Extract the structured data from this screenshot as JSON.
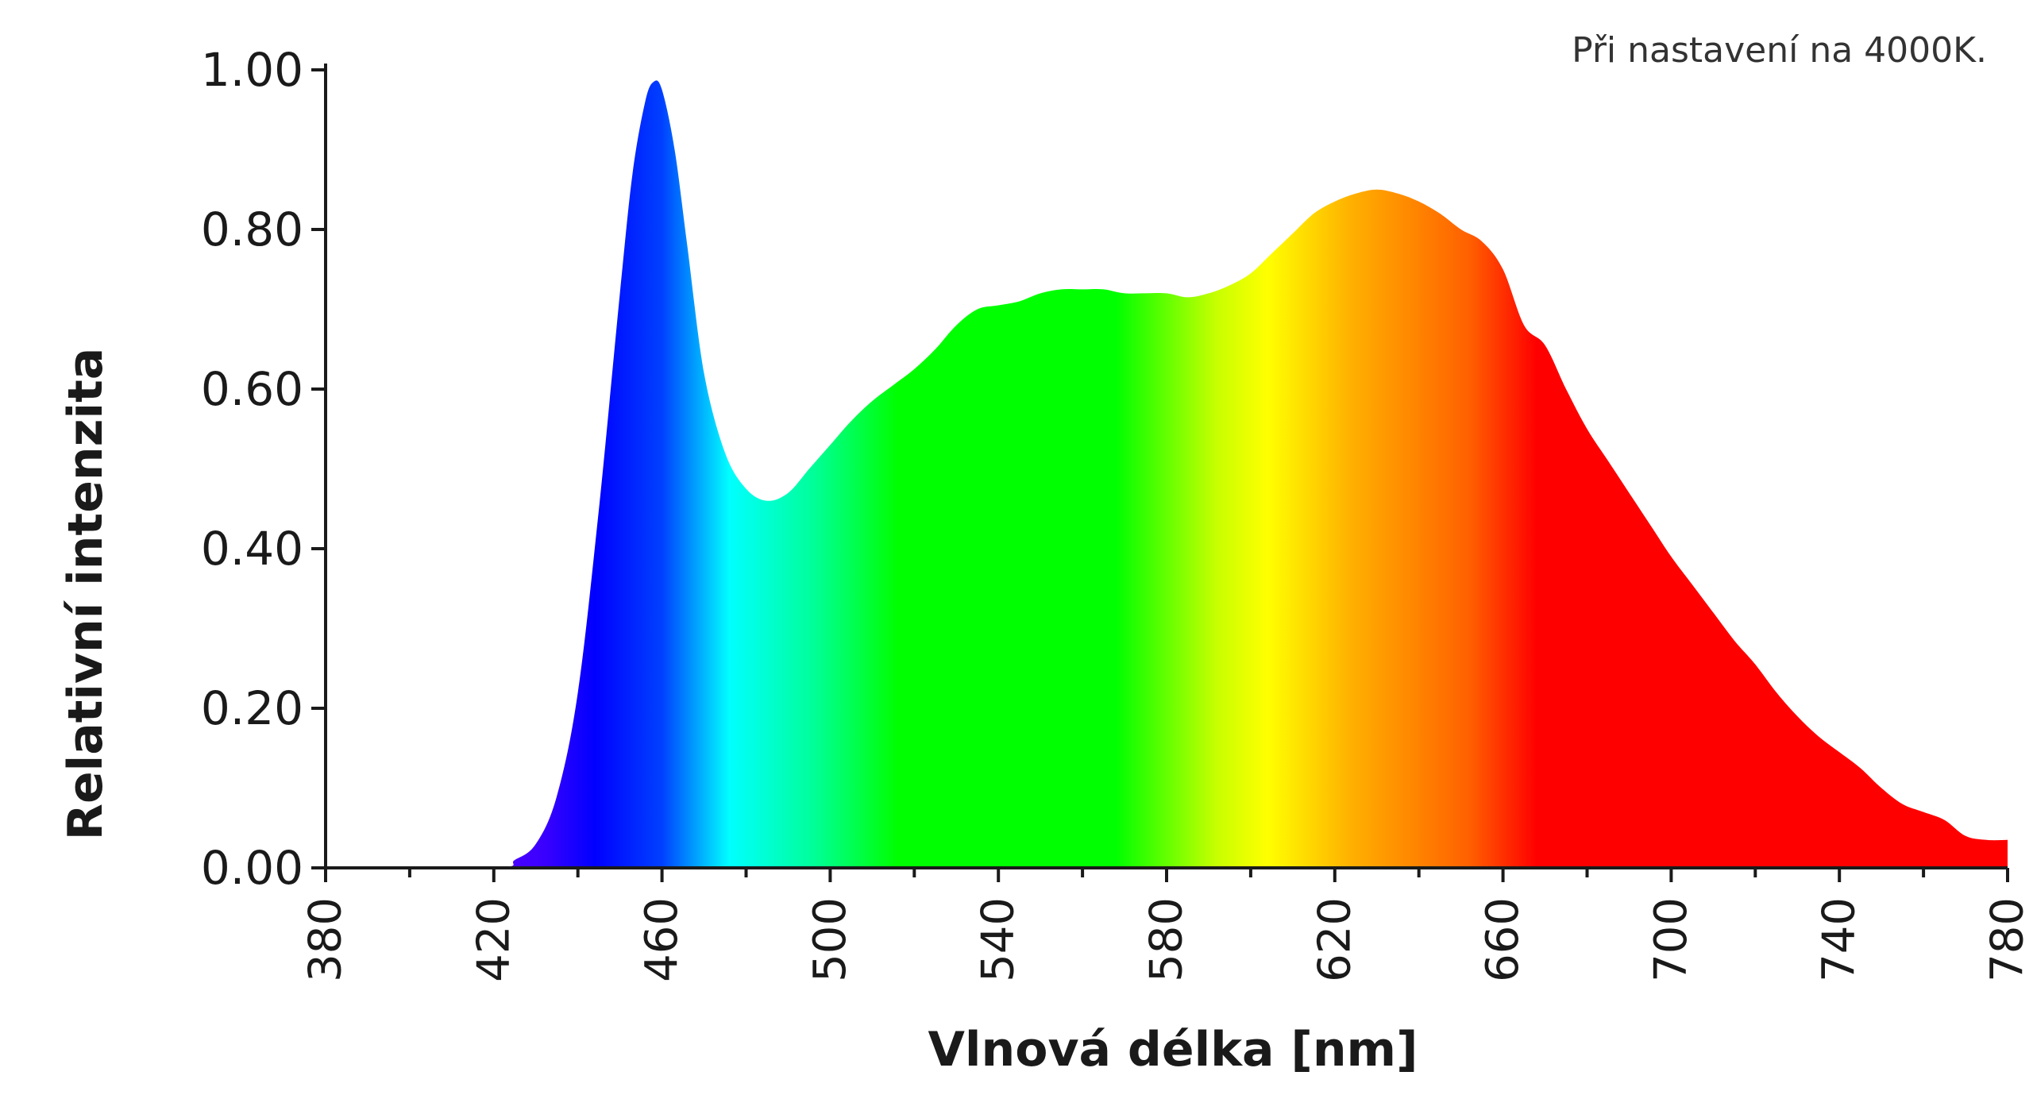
{
  "chart_data": {
    "type": "area",
    "title": "",
    "annotation": "Při nastavení na 4000K.",
    "xlabel": "Vlnová délka [nm]",
    "ylabel": "Relativní intenzita",
    "xlim": [
      380,
      780
    ],
    "ylim": [
      0,
      1
    ],
    "x_major_ticks": [
      380,
      420,
      460,
      500,
      540,
      580,
      620,
      660,
      700,
      740,
      780
    ],
    "x_tick_labels": [
      "380",
      "420",
      "460",
      "500",
      "540",
      "580",
      "620",
      "660",
      "700",
      "740",
      "780"
    ],
    "y_ticks": [
      0,
      0.2,
      0.4,
      0.6,
      0.8,
      1.0
    ],
    "y_tick_labels": [
      "0.00",
      "0.20",
      "0.40",
      "0.60",
      "0.80",
      "1.00"
    ],
    "grid": false,
    "legend": "none",
    "fill": "visible-spectrum color gradient",
    "x": [
      380,
      420,
      425,
      430,
      435,
      440,
      445,
      450,
      453,
      456,
      458,
      460,
      463,
      466,
      470,
      475,
      480,
      485,
      490,
      495,
      500,
      505,
      510,
      515,
      520,
      525,
      530,
      535,
      540,
      545,
      550,
      555,
      560,
      565,
      570,
      575,
      580,
      585,
      590,
      595,
      600,
      605,
      610,
      615,
      620,
      625,
      630,
      635,
      640,
      645,
      650,
      655,
      660,
      665,
      670,
      675,
      680,
      685,
      690,
      695,
      700,
      705,
      710,
      715,
      720,
      725,
      730,
      735,
      740,
      745,
      750,
      755,
      760,
      765,
      770,
      775,
      780
    ],
    "values": [
      0,
      0,
      0.01,
      0.03,
      0.09,
      0.22,
      0.45,
      0.72,
      0.87,
      0.96,
      0.985,
      0.975,
      0.9,
      0.78,
      0.62,
      0.52,
      0.475,
      0.46,
      0.47,
      0.5,
      0.53,
      0.56,
      0.585,
      0.605,
      0.625,
      0.65,
      0.68,
      0.7,
      0.705,
      0.71,
      0.72,
      0.725,
      0.725,
      0.725,
      0.72,
      0.72,
      0.72,
      0.715,
      0.72,
      0.73,
      0.745,
      0.77,
      0.795,
      0.82,
      0.835,
      0.845,
      0.85,
      0.845,
      0.835,
      0.82,
      0.8,
      0.785,
      0.75,
      0.68,
      0.655,
      0.6,
      0.55,
      0.51,
      0.47,
      0.43,
      0.39,
      0.355,
      0.32,
      0.285,
      0.255,
      0.22,
      0.19,
      0.165,
      0.145,
      0.125,
      0.1,
      0.08,
      0.07,
      0.06,
      0.04,
      0.035,
      0.035
    ]
  }
}
